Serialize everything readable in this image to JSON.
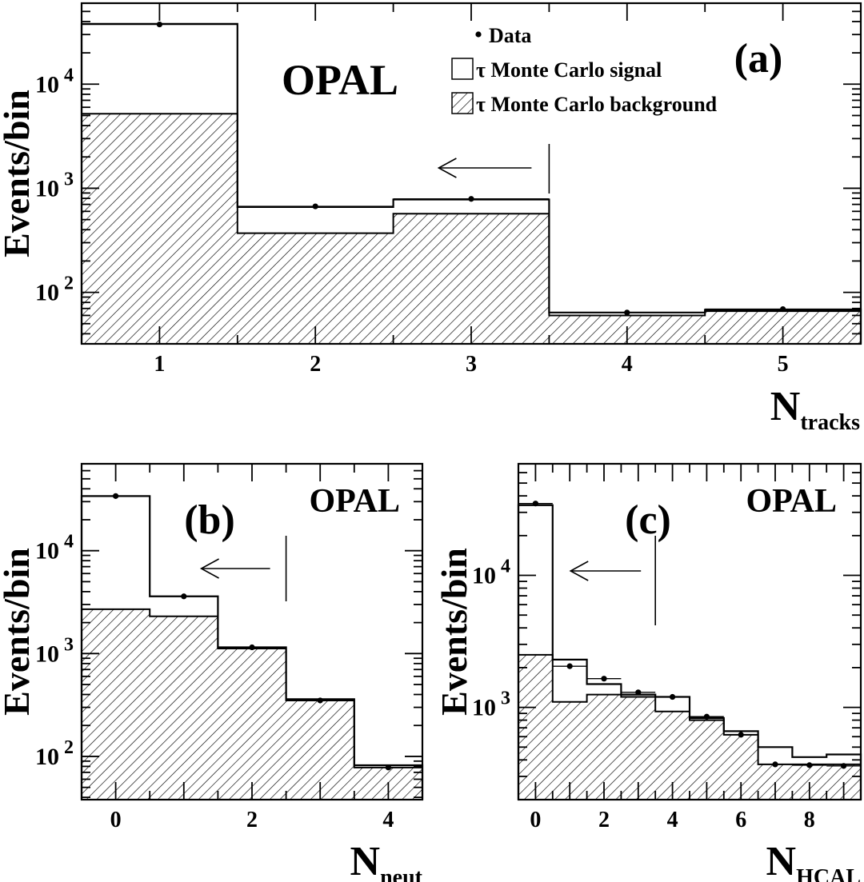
{
  "chart_data": [
    {
      "id": "a",
      "type": "bar",
      "panel_label": "(a)",
      "experiment": "OPAL",
      "ylabel": "Events/bin",
      "xlabel": {
        "main": "N",
        "sub": "tracks"
      },
      "yscale": "log",
      "ylim": [
        32,
        60000
      ],
      "xlim": [
        0.5,
        5.5
      ],
      "bins": [
        [
          0.5,
          1.5
        ],
        [
          1.5,
          2.5
        ],
        [
          2.5,
          3.5
        ],
        [
          3.5,
          4.5
        ],
        [
          4.5,
          5.5
        ]
      ],
      "x_ticks": [
        1,
        2,
        3,
        4,
        5
      ],
      "y_tick_labels": [
        {
          "value": 100,
          "base": "10",
          "exp": "2"
        },
        {
          "value": 1000,
          "base": "10",
          "exp": "3"
        },
        {
          "value": 10000,
          "base": "10",
          "exp": "4"
        }
      ],
      "series": [
        {
          "name": "τ Monte Carlo signal",
          "kind": "total_mc",
          "values": [
            38000,
            660,
            780,
            64,
            68
          ]
        },
        {
          "name": "τ Monte Carlo background",
          "kind": "background",
          "values": [
            5200,
            370,
            570,
            60,
            66
          ]
        },
        {
          "name": "Data",
          "kind": "data",
          "x": [
            1,
            2,
            3,
            4,
            5
          ],
          "values": [
            37500,
            670,
            790,
            64,
            69
          ]
        }
      ],
      "cut": {
        "x": 3.5,
        "direction": "left"
      },
      "legend": {
        "placement": "top-right",
        "entries": [
          {
            "label": "Data",
            "symbol": "dot"
          },
          {
            "label": "τ Monte Carlo signal",
            "symbol": "open-box"
          },
          {
            "label": "τ Monte Carlo background",
            "symbol": "hatched-box"
          }
        ]
      }
    },
    {
      "id": "b",
      "type": "bar",
      "panel_label": "(b)",
      "experiment": "OPAL",
      "ylabel": "Events/bin",
      "xlabel": {
        "main": "N",
        "sub": "neut"
      },
      "yscale": "log",
      "ylim": [
        38,
        70000
      ],
      "xlim": [
        -0.5,
        4.5
      ],
      "bins": [
        [
          -0.5,
          0.5
        ],
        [
          0.5,
          1.5
        ],
        [
          1.5,
          2.5
        ],
        [
          2.5,
          3.5
        ],
        [
          3.5,
          4.5
        ]
      ],
      "x_ticks": [
        0,
        2,
        4
      ],
      "y_tick_labels": [
        {
          "value": 100,
          "base": "10",
          "exp": "2"
        },
        {
          "value": 1000,
          "base": "10",
          "exp": "3"
        },
        {
          "value": 10000,
          "base": "10",
          "exp": "4"
        }
      ],
      "series": [
        {
          "name": "τ Monte Carlo signal",
          "kind": "total_mc",
          "values": [
            34000,
            3600,
            1150,
            360,
            82
          ]
        },
        {
          "name": "τ Monte Carlo background",
          "kind": "background",
          "values": [
            2700,
            2300,
            1120,
            350,
            78
          ]
        },
        {
          "name": "Data",
          "kind": "data",
          "x": [
            0,
            1,
            2,
            3,
            4
          ],
          "values": [
            34000,
            3600,
            1150,
            350,
            78
          ]
        }
      ],
      "cut": {
        "x": 2.5,
        "direction": "left"
      }
    },
    {
      "id": "c",
      "type": "bar",
      "panel_label": "(c)",
      "experiment": "OPAL",
      "ylabel": "Events/bin",
      "xlabel": {
        "main": "N",
        "sub": "HCAL"
      },
      "yscale": "log",
      "ylim": [
        200,
        70000
      ],
      "xlim": [
        -0.5,
        9.5
      ],
      "bins": [
        [
          -0.5,
          0.5
        ],
        [
          0.5,
          1.5
        ],
        [
          1.5,
          2.5
        ],
        [
          2.5,
          3.5
        ],
        [
          3.5,
          4.5
        ],
        [
          4.5,
          5.5
        ],
        [
          5.5,
          6.5
        ],
        [
          6.5,
          7.5
        ],
        [
          7.5,
          8.5
        ],
        [
          8.5,
          9.5
        ]
      ],
      "x_ticks": [
        0,
        2,
        4,
        6,
        8
      ],
      "y_tick_labels": [
        {
          "value": 1000,
          "base": "10",
          "exp": "3"
        },
        {
          "value": 10000,
          "base": "10",
          "exp": "4"
        }
      ],
      "series": [
        {
          "name": "τ Monte Carlo signal",
          "kind": "total_mc",
          "values": [
            34000,
            2300,
            1500,
            1250,
            1200,
            830,
            660,
            500,
            420,
            440
          ]
        },
        {
          "name": "τ Monte Carlo background",
          "kind": "background",
          "values": [
            2500,
            1100,
            1250,
            1200,
            930,
            800,
            620,
            370,
            370,
            370
          ]
        },
        {
          "name": "Data",
          "kind": "data",
          "x": [
            0,
            1,
            2,
            3,
            4,
            5,
            6,
            7,
            8,
            9
          ],
          "values": [
            35000,
            2050,
            1650,
            1300,
            1200,
            850,
            620,
            370,
            365,
            360
          ]
        }
      ],
      "cut": {
        "x": 3.5,
        "direction": "left"
      }
    }
  ],
  "colors": {
    "ink": "#000000",
    "background": "#ffffff"
  }
}
